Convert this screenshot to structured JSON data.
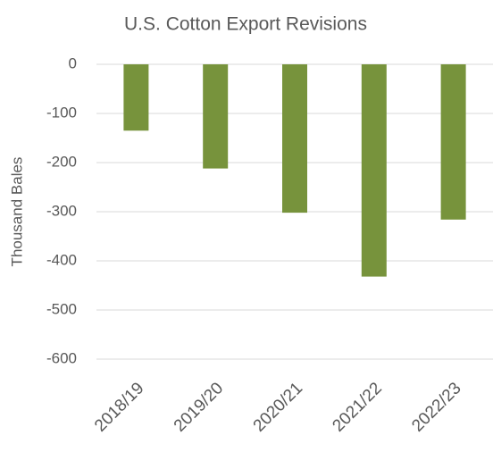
{
  "chart_data": {
    "type": "bar",
    "title": "U.S. Cotton Export Revisions",
    "y_label": "Thousand Bales",
    "categories": [
      "2018/19",
      "2019/20",
      "2020/21",
      "2021/22",
      "2022/23"
    ],
    "values": [
      -135,
      -212,
      -302,
      -432,
      -316
    ],
    "color": "#77933c",
    "ylim": [
      -600,
      0
    ],
    "yticks": [
      -600,
      -500,
      -400,
      -300,
      -200,
      -100,
      0
    ],
    "grid": true
  }
}
